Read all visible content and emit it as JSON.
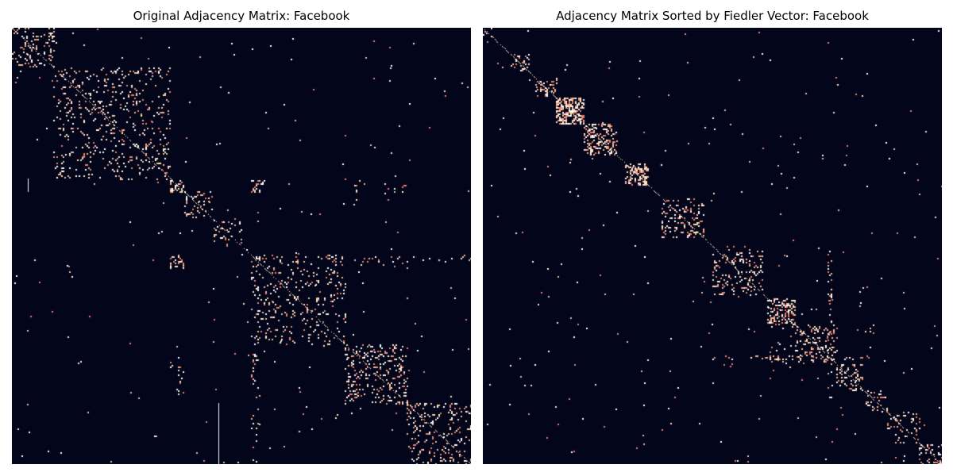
{
  "figure": {
    "left_title": "Original Adjacency Matrix: Facebook",
    "right_title": "Adjacency Matrix Sorted by Fiedler Vector: Facebook"
  },
  "colors": {
    "background": "#03051a",
    "cells": [
      "#fbe6c5",
      "#ffffff",
      "#f5b89a",
      "#e8836f"
    ]
  },
  "chart_data": [
    {
      "type": "heatmap",
      "title": "Original Adjacency Matrix: Facebook",
      "axes_visible": false,
      "matrix_range": [
        0,
        1
      ],
      "blocks": [
        {
          "range": [
            0.0,
            0.09
          ],
          "density": 0.16
        },
        {
          "range": [
            0.09,
            0.345
          ],
          "density": 0.09
        },
        {
          "range": [
            0.345,
            0.375
          ],
          "density": 0.3
        },
        {
          "range": [
            0.375,
            0.44
          ],
          "density": 0.12
        },
        {
          "range": [
            0.44,
            0.5
          ],
          "density": 0.1
        },
        {
          "range": [
            0.5,
            0.52
          ],
          "density": 0.07
        },
        {
          "range": [
            0.52,
            0.725
          ],
          "density": 0.09
        },
        {
          "range": [
            0.725,
            0.86
          ],
          "density": 0.14
        },
        {
          "range": [
            0.86,
            1.0
          ],
          "density": 0.11
        }
      ],
      "off_diagonal_patches": [
        {
          "x": [
            0.345,
            0.375
          ],
          "y": [
            0.52,
            0.55
          ],
          "density": 0.25
        },
        {
          "x": [
            0.52,
            0.55
          ],
          "y": [
            0.345,
            0.375
          ],
          "density": 0.25
        },
        {
          "x": [
            0.0,
            0.09
          ],
          "y": [
            0.09,
            0.13
          ],
          "density": 0.02
        },
        {
          "x": [
            0.345,
            0.375
          ],
          "y": [
            0.725,
            0.86
          ],
          "density": 0.04
        },
        {
          "x": [
            0.725,
            0.86
          ],
          "y": [
            0.345,
            0.375
          ],
          "density": 0.04
        },
        {
          "x": [
            0.52,
            0.55
          ],
          "y": [
            0.725,
            0.86
          ],
          "density": 0.03
        },
        {
          "x": [
            0.725,
            0.86
          ],
          "y": [
            0.52,
            0.55
          ],
          "density": 0.03
        },
        {
          "x": [
            0.52,
            1.0
          ],
          "y": [
            0.52,
            0.535
          ],
          "density": 0.04
        },
        {
          "x": [
            0.52,
            0.535
          ],
          "y": [
            0.52,
            1.0
          ],
          "density": 0.04
        }
      ],
      "lines": [
        {
          "orientation": "vertical",
          "pos": 0.45,
          "range": [
            0.86,
            1.0
          ]
        },
        {
          "orientation": "vertical",
          "pos": 0.035,
          "range": [
            0.345,
            0.375
          ]
        }
      ],
      "noise_density": 0.0006
    },
    {
      "type": "heatmap",
      "title": "Adjacency Matrix Sorted by Fiedler Vector: Facebook",
      "axes_visible": false,
      "matrix_range": [
        0,
        1
      ],
      "blocks": [
        {
          "range": [
            0.0,
            0.02
          ],
          "density": 0.25
        },
        {
          "range": [
            0.06,
            0.1
          ],
          "density": 0.22
        },
        {
          "range": [
            0.115,
            0.16
          ],
          "density": 0.18
        },
        {
          "range": [
            0.16,
            0.22
          ],
          "density": 0.55
        },
        {
          "range": [
            0.22,
            0.29
          ],
          "density": 0.35
        },
        {
          "range": [
            0.31,
            0.36
          ],
          "density": 0.4
        },
        {
          "range": [
            0.39,
            0.48
          ],
          "density": 0.18
        },
        {
          "range": [
            0.5,
            0.61
          ],
          "density": 0.14
        },
        {
          "range": [
            0.62,
            0.68
          ],
          "density": 0.3
        },
        {
          "range": [
            0.68,
            0.77
          ],
          "density": 0.14
        },
        {
          "range": [
            0.77,
            0.83
          ],
          "density": 0.2
        },
        {
          "range": [
            0.83,
            0.88
          ],
          "density": 0.16
        },
        {
          "range": [
            0.88,
            0.95
          ],
          "density": 0.12
        },
        {
          "range": [
            0.95,
            1.0
          ],
          "density": 0.2
        }
      ],
      "off_diagonal_patches": [
        {
          "x": [
            0.5,
            0.85
          ],
          "y": [
            0.75,
            0.76
          ],
          "density": 0.12
        },
        {
          "x": [
            0.75,
            0.76
          ],
          "y": [
            0.5,
            0.85
          ],
          "density": 0.12
        },
        {
          "x": [
            0.68,
            0.85
          ],
          "y": [
            0.68,
            0.7
          ],
          "density": 0.05
        },
        {
          "x": [
            0.6,
            0.77
          ],
          "y": [
            0.6,
            0.77
          ],
          "density": 0.015
        }
      ],
      "lines": [],
      "noise_density": 0.0008
    }
  ]
}
